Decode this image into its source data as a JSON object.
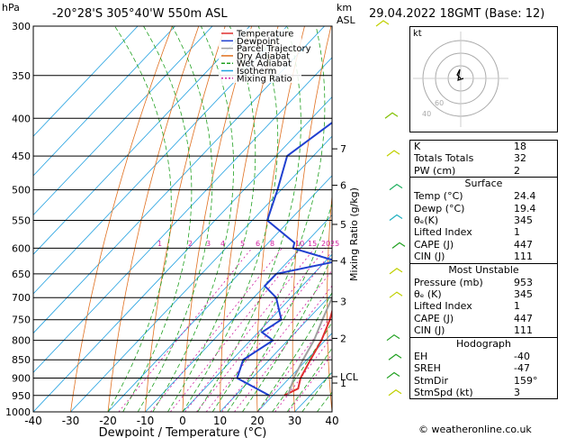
{
  "header": {
    "hpa_label": "hPa",
    "location": "-20°28'S  305°40'W  550m  ASL",
    "km_label": "km",
    "asl_label": "ASL",
    "date": "29.04.2022  18GMT  (Base: 12)"
  },
  "legend": [
    "Temperature",
    "Dewpoint",
    "Parcel Trajectory",
    "Dry Adiabat",
    "Wet Adiabat",
    "Isotherm",
    "Mixing Ratio"
  ],
  "colors": {
    "temperature": "#e03030",
    "dewpoint": "#2040d0",
    "parcel": "#a0a0a0",
    "dry_adiabat": "#e07020",
    "wet_adiabat": "#20a020",
    "isotherm": "#20a0e0",
    "mixing_ratio": "#d020a0"
  },
  "chart_data": {
    "type": "line",
    "title": "",
    "xlabel": "Dewpoint / Temperature (°C)",
    "ylabel": "hPa",
    "right_axis_label": "Mixing Ratio (g/kg)",
    "pressure_levels": [
      300,
      350,
      400,
      450,
      500,
      550,
      600,
      650,
      700,
      750,
      800,
      850,
      900,
      950,
      1000
    ],
    "x_ticks": [
      -40,
      -30,
      -20,
      -10,
      0,
      10,
      20,
      30,
      40
    ],
    "xlim": [
      -40,
      40
    ],
    "km_ticks": [
      {
        "label": "7",
        "p": 440
      },
      {
        "label": "6",
        "p": 493
      },
      {
        "label": "5",
        "p": 557
      },
      {
        "label": "4",
        "p": 624
      },
      {
        "label": "3",
        "p": 709
      },
      {
        "label": "2",
        "p": 795
      },
      {
        "label": "1",
        "p": 914
      },
      {
        "label": "LCL",
        "p": 896
      }
    ],
    "mixing_ratio_labels": [
      "1",
      "2",
      "3",
      "4",
      "5",
      "6",
      "8",
      "10",
      "15",
      "20",
      "25"
    ],
    "series": [
      {
        "name": "Temperature",
        "points": [
          [
            300,
            -32
          ],
          [
            350,
            -25
          ],
          [
            400,
            -17
          ],
          [
            450,
            -10
          ],
          [
            500,
            -5
          ],
          [
            550,
            2
          ],
          [
            600,
            6
          ],
          [
            650,
            9
          ],
          [
            700,
            12
          ],
          [
            750,
            16
          ],
          [
            800,
            19
          ],
          [
            850,
            21
          ],
          [
            900,
            23
          ],
          [
            930,
            25
          ],
          [
            950,
            23
          ]
        ]
      },
      {
        "name": "Dewpoint",
        "points": [
          [
            300,
            -55
          ],
          [
            350,
            -44
          ],
          [
            400,
            -33
          ],
          [
            450,
            -37
          ],
          [
            500,
            -31
          ],
          [
            550,
            -26
          ],
          [
            590,
            -13
          ],
          [
            600,
            -12
          ],
          [
            625,
            3
          ],
          [
            650,
            -10
          ],
          [
            675,
            -10
          ],
          [
            700,
            -4
          ],
          [
            750,
            3
          ],
          [
            780,
            1
          ],
          [
            800,
            6
          ],
          [
            850,
            3
          ],
          [
            900,
            6
          ],
          [
            950,
            19
          ]
        ]
      },
      {
        "name": "Parcel Trajectory",
        "points": [
          [
            300,
            -30
          ],
          [
            350,
            -23
          ],
          [
            400,
            -16
          ],
          [
            450,
            -10
          ],
          [
            500,
            -5
          ],
          [
            550,
            0
          ],
          [
            600,
            4
          ],
          [
            650,
            8
          ],
          [
            700,
            11
          ],
          [
            750,
            14
          ],
          [
            800,
            17
          ],
          [
            850,
            19
          ],
          [
            896,
            21
          ],
          [
            950,
            24
          ]
        ]
      }
    ]
  },
  "hodograph": {
    "label": "kt",
    "rings": [
      "40",
      "60"
    ]
  },
  "indices": [
    {
      "label": "K",
      "value": "18"
    },
    {
      "label": "Totals Totals",
      "value": "32"
    },
    {
      "label": "PW (cm)",
      "value": "2"
    }
  ],
  "surface": {
    "title": "Surface",
    "rows": [
      {
        "label": "Temp (°C)",
        "value": "24.4"
      },
      {
        "label": "Dewp (°C)",
        "value": "19.4"
      },
      {
        "label": "θₑ(K)",
        "value": "345"
      },
      {
        "label": "Lifted Index",
        "value": "1"
      },
      {
        "label": "CAPE (J)",
        "value": "447"
      },
      {
        "label": "CIN (J)",
        "value": "111"
      }
    ]
  },
  "most_unstable": {
    "title": "Most Unstable",
    "rows": [
      {
        "label": "Pressure (mb)",
        "value": "953"
      },
      {
        "label": "θₑ (K)",
        "value": "345"
      },
      {
        "label": "Lifted Index",
        "value": "1"
      },
      {
        "label": "CAPE (J)",
        "value": "447"
      },
      {
        "label": "CIN (J)",
        "value": "111"
      }
    ]
  },
  "hodograph_table": {
    "title": "Hodograph",
    "rows": [
      {
        "label": "EH",
        "value": "-40"
      },
      {
        "label": "SREH",
        "value": "-47"
      },
      {
        "label": "StmDir",
        "value": "159°"
      },
      {
        "label": "StmSpd (kt)",
        "value": "3"
      }
    ]
  },
  "credit": "© weatheronline.co.uk"
}
